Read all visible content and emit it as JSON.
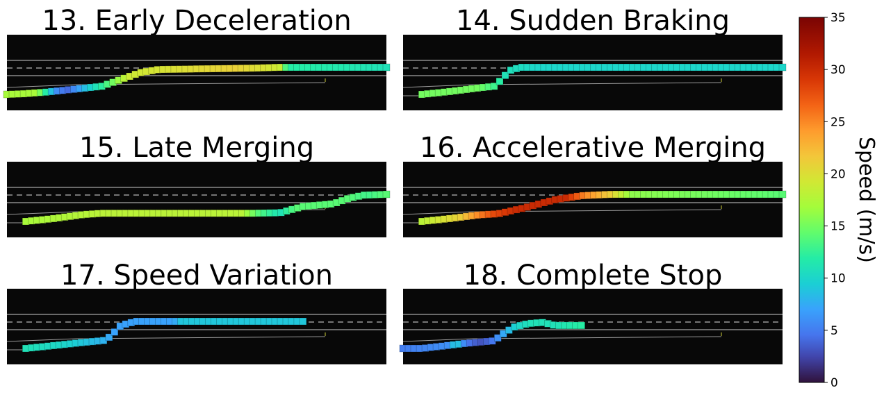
{
  "chart_data": [
    {
      "type": "scatter",
      "title": "13. Early Deceleration",
      "path": [
        [
          0.0,
          0.0
        ],
        [
          0.04,
          0.02
        ],
        [
          0.1,
          0.08
        ],
        [
          0.17,
          0.18
        ],
        [
          0.25,
          0.3
        ],
        [
          0.3,
          0.55
        ],
        [
          0.35,
          0.8
        ],
        [
          0.4,
          0.92
        ],
        [
          0.45,
          0.93
        ],
        [
          0.55,
          0.95
        ],
        [
          0.65,
          0.97
        ],
        [
          0.72,
          1.0
        ],
        [
          1.0,
          1.0
        ]
      ],
      "speed": [
        [
          0.0,
          17
        ],
        [
          0.08,
          17
        ],
        [
          0.13,
          6
        ],
        [
          0.16,
          4
        ],
        [
          0.2,
          8
        ],
        [
          0.26,
          13
        ],
        [
          0.32,
          19
        ],
        [
          0.6,
          21
        ],
        [
          0.72,
          19
        ],
        [
          0.74,
          12
        ],
        [
          1.0,
          11
        ]
      ]
    },
    {
      "type": "scatter",
      "title": "14. Sudden Braking",
      "path": [
        [
          0.05,
          0.0
        ],
        [
          0.12,
          0.1
        ],
        [
          0.2,
          0.24
        ],
        [
          0.24,
          0.3
        ],
        [
          0.26,
          0.55
        ],
        [
          0.28,
          0.88
        ],
        [
          0.31,
          1.0
        ],
        [
          1.0,
          1.0
        ]
      ],
      "speed": [
        [
          0.05,
          15
        ],
        [
          0.2,
          15
        ],
        [
          0.24,
          13
        ],
        [
          0.27,
          11
        ],
        [
          0.35,
          10
        ],
        [
          1.0,
          10
        ]
      ]
    },
    {
      "type": "scatter",
      "title": "15. Late Merging",
      "path": [
        [
          0.05,
          0.0
        ],
        [
          0.12,
          0.1
        ],
        [
          0.2,
          0.25
        ],
        [
          0.25,
          0.3
        ],
        [
          0.65,
          0.3
        ],
        [
          0.72,
          0.32
        ],
        [
          0.78,
          0.55
        ],
        [
          0.86,
          0.65
        ],
        [
          0.9,
          0.85
        ],
        [
          0.94,
          0.97
        ],
        [
          1.0,
          1.0
        ]
      ],
      "speed": [
        [
          0.05,
          17
        ],
        [
          0.25,
          18
        ],
        [
          0.62,
          18
        ],
        [
          0.66,
          14
        ],
        [
          0.72,
          11
        ],
        [
          0.76,
          14
        ],
        [
          0.9,
          14
        ],
        [
          0.95,
          13
        ],
        [
          1.0,
          14
        ]
      ]
    },
    {
      "type": "scatter",
      "title": "16. Accelerative Merging",
      "path": [
        [
          0.05,
          0.0
        ],
        [
          0.12,
          0.1
        ],
        [
          0.2,
          0.24
        ],
        [
          0.25,
          0.28
        ],
        [
          0.32,
          0.5
        ],
        [
          0.4,
          0.8
        ],
        [
          0.47,
          0.95
        ],
        [
          0.55,
          1.0
        ],
        [
          1.0,
          1.0
        ]
      ],
      "speed": [
        [
          0.05,
          18
        ],
        [
          0.15,
          21
        ],
        [
          0.2,
          25
        ],
        [
          0.24,
          28
        ],
        [
          0.3,
          30
        ],
        [
          0.43,
          30
        ],
        [
          0.48,
          25
        ],
        [
          0.55,
          21
        ],
        [
          0.6,
          16
        ],
        [
          1.0,
          14
        ]
      ]
    },
    {
      "type": "scatter",
      "title": "17. Speed Variation",
      "path": [
        [
          0.05,
          0.0
        ],
        [
          0.12,
          0.1
        ],
        [
          0.2,
          0.22
        ],
        [
          0.26,
          0.3
        ],
        [
          0.28,
          0.55
        ],
        [
          0.3,
          0.85
        ],
        [
          0.34,
          1.0
        ],
        [
          0.78,
          1.0
        ]
      ],
      "speed": [
        [
          0.05,
          11
        ],
        [
          0.15,
          10
        ],
        [
          0.25,
          8
        ],
        [
          0.28,
          7
        ],
        [
          0.34,
          7
        ],
        [
          0.44,
          7
        ],
        [
          0.46,
          9
        ],
        [
          0.78,
          9
        ]
      ]
    },
    {
      "type": "scatter",
      "title": "18. Complete Stop",
      "path": [
        [
          0.0,
          0.0
        ],
        [
          0.05,
          0.0
        ],
        [
          0.1,
          0.08
        ],
        [
          0.16,
          0.18
        ],
        [
          0.24,
          0.28
        ],
        [
          0.26,
          0.5
        ],
        [
          0.29,
          0.78
        ],
        [
          0.33,
          0.92
        ],
        [
          0.37,
          0.96
        ],
        [
          0.4,
          0.85
        ],
        [
          0.47,
          0.85
        ]
      ],
      "speed": [
        [
          0.0,
          5
        ],
        [
          0.12,
          6
        ],
        [
          0.14,
          10
        ],
        [
          0.16,
          6
        ],
        [
          0.18,
          4
        ],
        [
          0.21,
          3
        ],
        [
          0.24,
          5
        ],
        [
          0.26,
          7
        ],
        [
          0.3,
          10
        ],
        [
          0.34,
          11
        ],
        [
          0.4,
          11
        ],
        [
          0.47,
          12
        ]
      ]
    }
  ],
  "colorbar": {
    "label": "Speed (m/s)",
    "min": 0,
    "max": 35,
    "ticks": [
      "0",
      "5",
      "10",
      "15",
      "20",
      "25",
      "30",
      "35"
    ]
  },
  "colors": {
    "panel_bg": "#080808",
    "lane_line": "#8a8a8a",
    "lane_dash": "#9a9a9a",
    "ramp_line": "#9c9c9c"
  }
}
